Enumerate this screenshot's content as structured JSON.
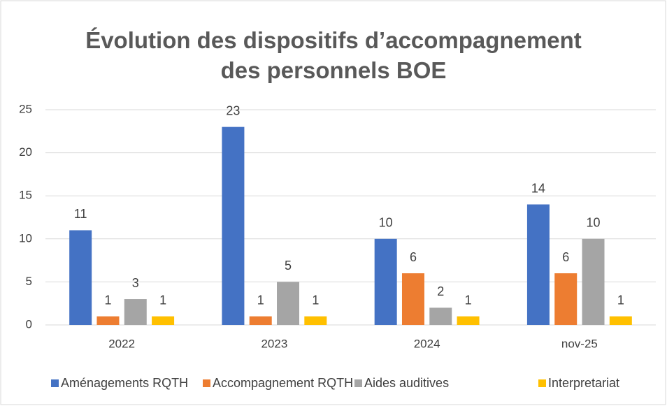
{
  "chart_data": {
    "type": "bar",
    "title": "Évolution des dispositifs d’accompagnement des personnels BOE",
    "categories": [
      "2022",
      "2023",
      "2024",
      "nov-25"
    ],
    "series": [
      {
        "name": "Aménagements RQTH",
        "color": "#4472c4",
        "values": [
          11,
          23,
          10,
          14
        ]
      },
      {
        "name": "Accompagnement RQTH",
        "color": "#ed7d31",
        "values": [
          1,
          1,
          6,
          6
        ]
      },
      {
        "name": "Aides auditives",
        "color": "#a5a5a5",
        "values": [
          3,
          5,
          2,
          10
        ]
      },
      {
        "name": "Interpretariat",
        "color": "#ffc000",
        "values": [
          1,
          1,
          1,
          1
        ]
      }
    ],
    "ylim": [
      0,
      25
    ],
    "yticks": [
      0,
      5,
      10,
      15,
      20,
      25
    ],
    "grid": true,
    "legend": "bottom"
  }
}
